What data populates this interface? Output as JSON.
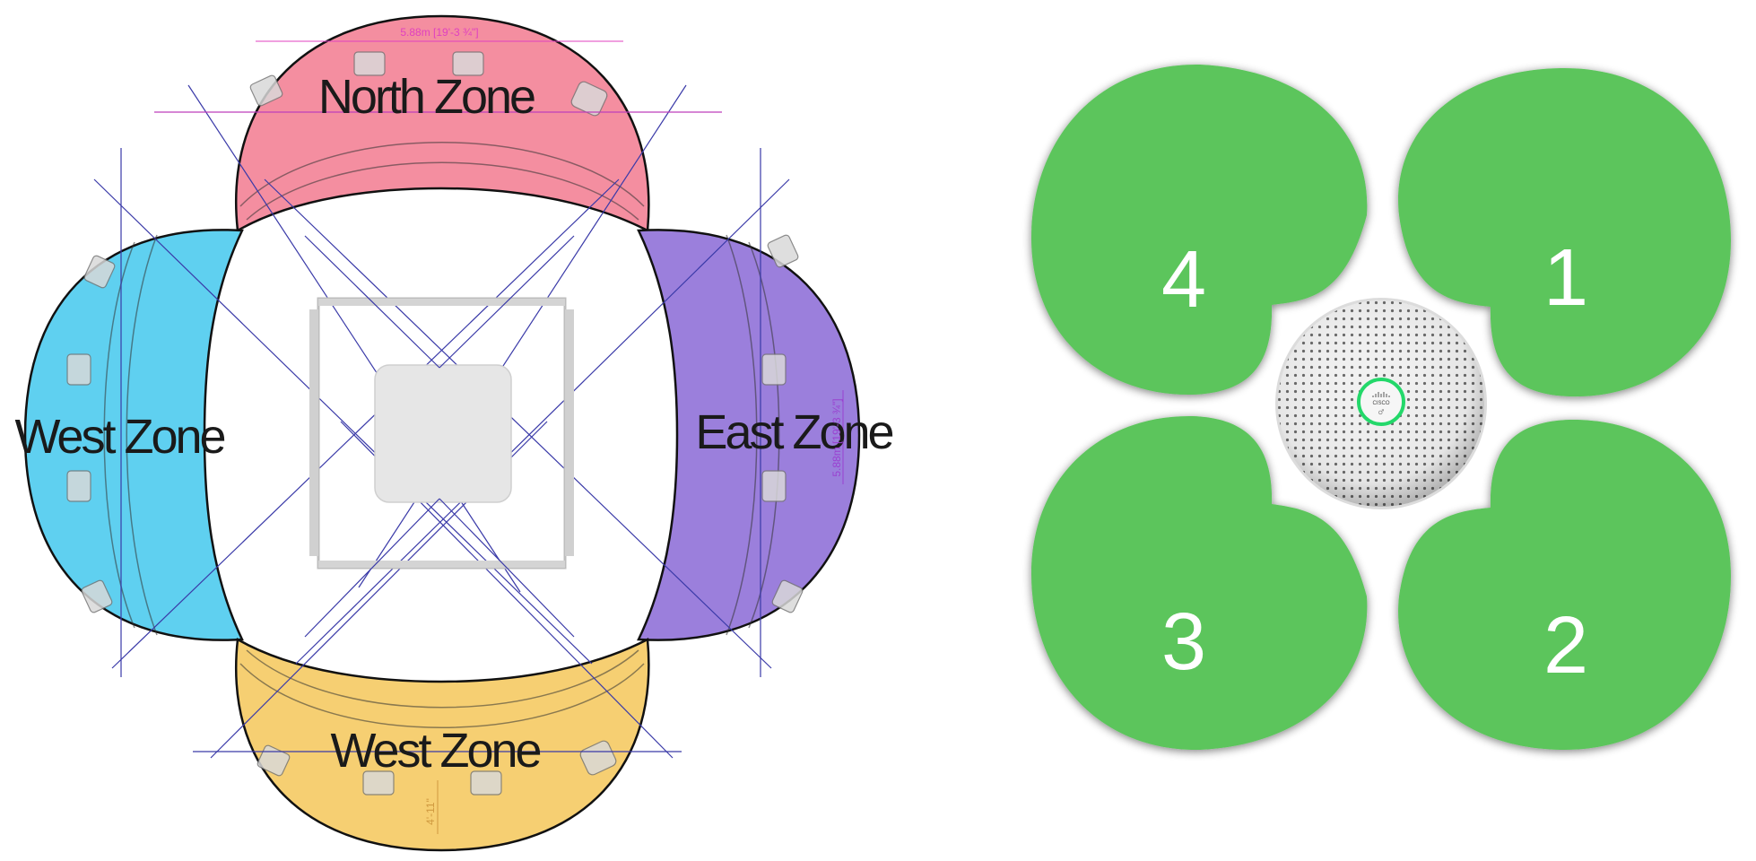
{
  "room_diagram": {
    "zones": {
      "north": {
        "label": "North Zone",
        "color": "#f48ea0"
      },
      "west": {
        "label": "West Zone",
        "color": "#5fd0f0"
      },
      "east": {
        "label": "East Zone",
        "color": "#9b7fdc"
      },
      "south": {
        "label": "West Zone",
        "color": "#f6cf72"
      }
    },
    "dimensions": {
      "top": "5.88m [19'-3 ¾\"]",
      "right": "5.88m [19'-3 ¾\"]",
      "bottom": "4'-11\""
    },
    "colors": {
      "guide_lines": "#3a3aa8",
      "dimension_magenta": "#e040c0",
      "dimension_purple": "#9a40d0",
      "dimension_orange": "#d09a40"
    }
  },
  "pickup_pattern": {
    "lobes": [
      {
        "number": "4"
      },
      {
        "number": "1"
      },
      {
        "number": "3"
      },
      {
        "number": "2"
      }
    ],
    "device": {
      "brand": "CISCO",
      "ring_color": "#23d86a"
    },
    "lobe_color": "#5cc55c"
  }
}
